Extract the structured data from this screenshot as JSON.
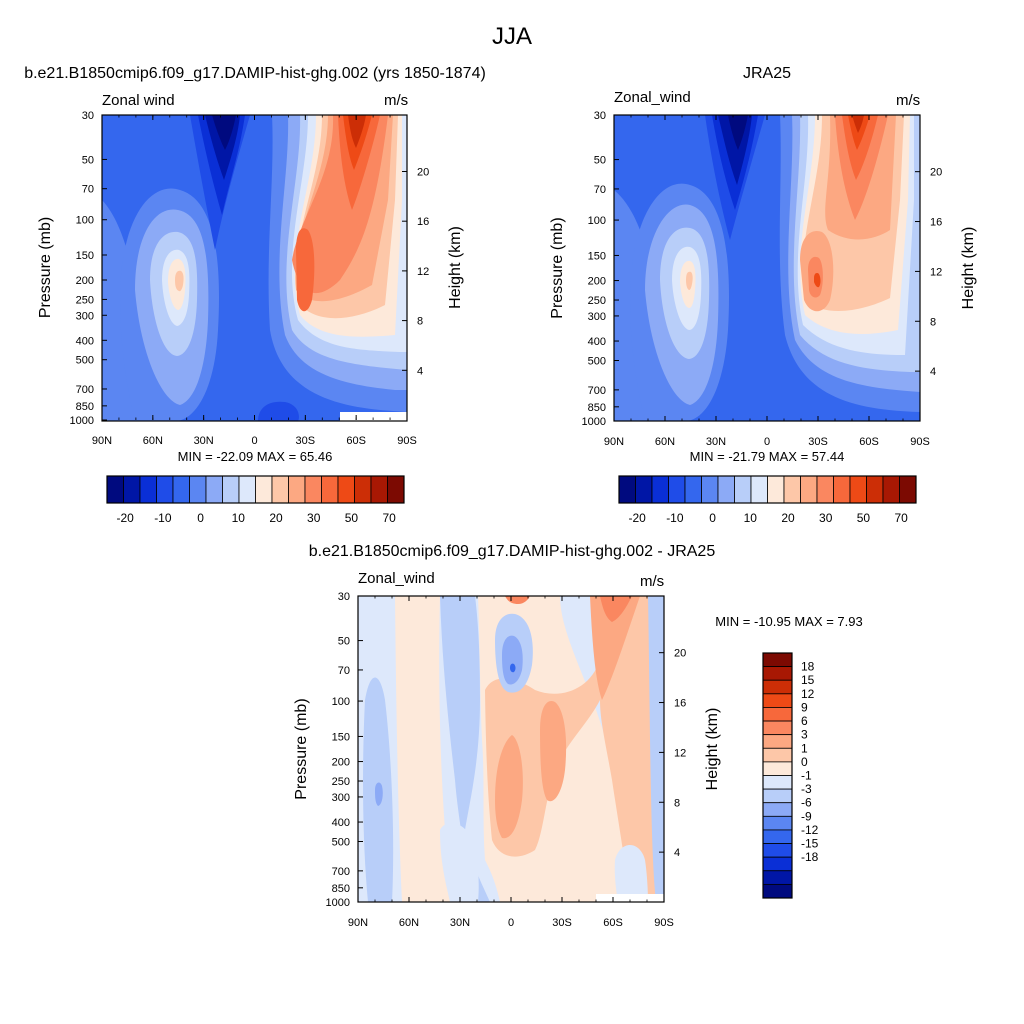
{
  "figure_title": "JJA",
  "colors": {
    "blue_ramp": [
      "#000a7f",
      "#0016a6",
      "#0a2fd6",
      "#1f4ce8",
      "#3467ee",
      "#5b86f2",
      "#8caaf6",
      "#b8cef9",
      "#dde8fb"
    ],
    "red_ramp": [
      "#fde9da",
      "#fdc7a8",
      "#fca882",
      "#fa8760",
      "#f7683b",
      "#ee4a16",
      "#cc2e06",
      "#a81803",
      "#7c0a02"
    ]
  },
  "chart_data": [
    {
      "id": "model",
      "type": "contour",
      "title": "b.e21.B1850cmip6.f09_g17.DAMIP-hist-ghg.002 (yrs 1850-1874)",
      "left_label": "Zonal wind",
      "right_label": "m/s",
      "ylabel": "Pressure (mb)",
      "ylabel_right": "Height (km)",
      "x_ticks": [
        "90N",
        "60N",
        "30N",
        "0",
        "30S",
        "60S",
        "90S"
      ],
      "y_ticks": [
        "30",
        "50",
        "70",
        "100",
        "150",
        "200",
        "250",
        "300",
        "400",
        "500",
        "700",
        "850",
        "1000"
      ],
      "height_ticks": [
        "20",
        "16",
        "12",
        "8",
        "4"
      ],
      "xlim": [
        90,
        -90
      ],
      "ylim": [
        1000,
        30
      ],
      "stats": "MIN = -22.09  MAX =  65.46",
      "min": -22.09,
      "max": 65.46,
      "colorbar_labels": [
        "-20",
        "-10",
        "0",
        "10",
        "20",
        "30",
        "50",
        "70"
      ]
    },
    {
      "id": "obs",
      "type": "contour",
      "title": "JRA25",
      "left_label": "Zonal_wind",
      "right_label": "m/s",
      "ylabel": "Pressure (mb)",
      "ylabel_right": "Height (km)",
      "x_ticks": [
        "90N",
        "60N",
        "30N",
        "0",
        "30S",
        "60S",
        "90S"
      ],
      "y_ticks": [
        "30",
        "50",
        "70",
        "100",
        "150",
        "200",
        "250",
        "300",
        "400",
        "500",
        "700",
        "850",
        "1000"
      ],
      "height_ticks": [
        "20",
        "16",
        "12",
        "8",
        "4"
      ],
      "xlim": [
        90,
        -90
      ],
      "ylim": [
        1000,
        30
      ],
      "stats": "MIN = -21.79  MAX =  57.44",
      "min": -21.79,
      "max": 57.44,
      "colorbar_labels": [
        "-20",
        "-10",
        "0",
        "10",
        "20",
        "30",
        "50",
        "70"
      ]
    },
    {
      "id": "diff",
      "type": "contour",
      "title": "b.e21.B1850cmip6.f09_g17.DAMIP-hist-ghg.002 - JRA25",
      "left_label": "Zonal_wind",
      "right_label": "m/s",
      "ylabel": "Pressure (mb)",
      "ylabel_right": "Height (km)",
      "x_ticks": [
        "90N",
        "60N",
        "30N",
        "0",
        "30S",
        "60S",
        "90S"
      ],
      "y_ticks": [
        "30",
        "50",
        "70",
        "100",
        "150",
        "200",
        "250",
        "300",
        "400",
        "500",
        "700",
        "850",
        "1000"
      ],
      "height_ticks": [
        "20",
        "16",
        "12",
        "8",
        "4"
      ],
      "xlim": [
        90,
        -90
      ],
      "ylim": [
        1000,
        30
      ],
      "stats": "MIN = -10.95  MAX =   7.93",
      "min": -10.95,
      "max": 7.93,
      "colorbar_labels": [
        "18",
        "15",
        "12",
        "9",
        "6",
        "3",
        "1",
        "0",
        "-1",
        "-3",
        "-6",
        "-9",
        "-12",
        "-15",
        "-18"
      ]
    }
  ]
}
